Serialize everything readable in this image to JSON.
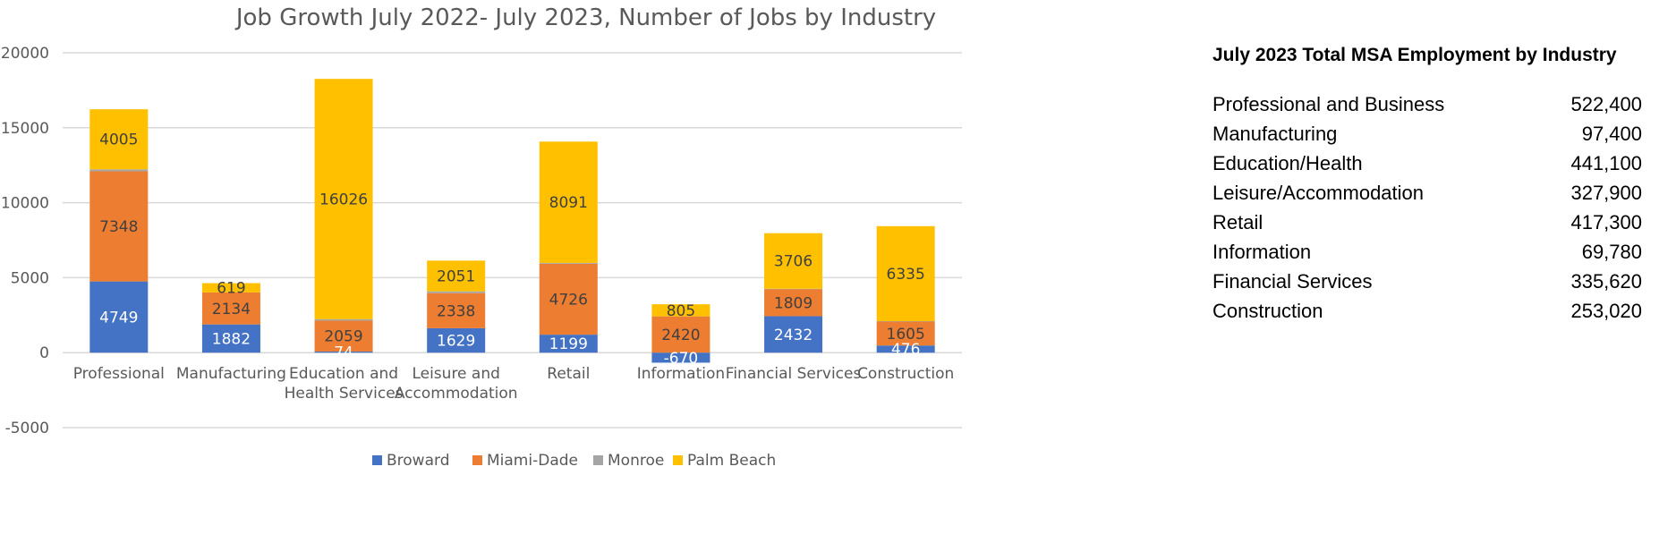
{
  "chart_data": {
    "type": "bar",
    "stacked": true,
    "title": "Job Growth July 2022- July 2023, Number of Jobs by Industry",
    "categories": [
      [
        "Professional"
      ],
      [
        "Manufacturing"
      ],
      [
        "Education and",
        "Health Services"
      ],
      [
        "Leisure and",
        "Accommodation"
      ],
      [
        "Retail"
      ],
      [
        "Information"
      ],
      [
        "Financial Services"
      ],
      [
        "Construction"
      ]
    ],
    "ylim": [
      -5000,
      20000
    ],
    "yticks": [
      20000,
      15000,
      10000,
      5000,
      0,
      -5000
    ],
    "grid": true,
    "legend_position": "bottom",
    "series": [
      {
        "name": "Broward",
        "color": "#4472c4",
        "label_color": "#ffffff",
        "values": [
          4749,
          1882,
          74,
          1629,
          1199,
          -670,
          2432,
          476
        ],
        "labels": [
          "4749",
          "1882",
          "74",
          "1629",
          "1199",
          "-670",
          "2432",
          "476"
        ]
      },
      {
        "name": "Miami-Dade",
        "color": "#ed7d31",
        "label_color": "#404040",
        "values": [
          7348,
          2134,
          2059,
          2338,
          4726,
          2420,
          1809,
          1605
        ],
        "labels": [
          "7348",
          "2134",
          "2059",
          "2338",
          "4726",
          "2420",
          "1809",
          "1605"
        ]
      },
      {
        "name": "Monroe",
        "color": "#a5a5a5",
        "label_color": "#404040",
        "values": [
          130,
          0,
          100,
          120,
          60,
          0,
          20,
          20
        ],
        "labels": [
          "",
          "",
          "",
          "",
          "",
          "",
          "",
          ""
        ]
      },
      {
        "name": "Palm Beach",
        "color": "#ffc000",
        "label_color": "#404040",
        "values": [
          4005,
          619,
          16026,
          2051,
          8091,
          805,
          3706,
          6335
        ],
        "labels": [
          "4005",
          "619",
          "16026",
          "2051",
          "8091",
          "805",
          "3706",
          "6335"
        ]
      }
    ]
  },
  "employment_table": {
    "title": "July 2023 Total MSA Employment by Industry",
    "rows": [
      {
        "name": "Professional and Business",
        "value": "522,400"
      },
      {
        "name": "Manufacturing",
        "value": "97,400"
      },
      {
        "name": "Education/Health",
        "value": "441,100"
      },
      {
        "name": "Leisure/Accommodation",
        "value": "327,900"
      },
      {
        "name": "Retail",
        "value": "417,300"
      },
      {
        "name": "Information",
        "value": "69,780"
      },
      {
        "name": "Financial Services",
        "value": "335,620"
      },
      {
        "name": "Construction",
        "value": "253,020"
      }
    ]
  }
}
